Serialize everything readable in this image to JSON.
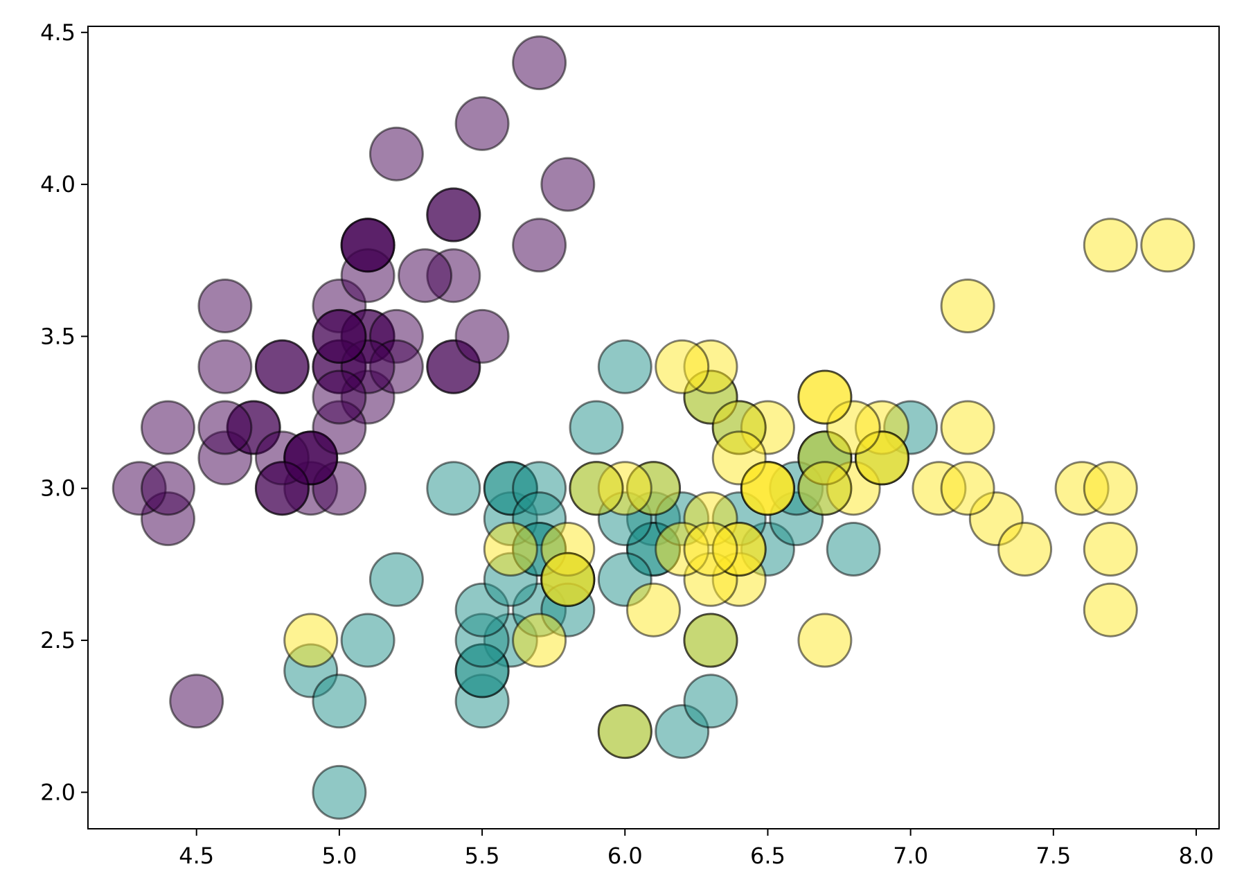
{
  "chart_data": {
    "type": "scatter",
    "title": "",
    "xlabel": "",
    "ylabel": "",
    "xlim": [
      4.12,
      8.08
    ],
    "ylim": [
      1.88,
      4.52
    ],
    "xticks": [
      "4.5",
      "5.0",
      "5.5",
      "6.0",
      "6.5",
      "7.0",
      "7.5",
      "8.0"
    ],
    "yticks": [
      "2.0",
      "2.5",
      "3.0",
      "3.5",
      "4.0",
      "4.5"
    ],
    "grid": false,
    "legend": "none",
    "colors": [
      "#440154",
      "#21918c",
      "#fde725"
    ],
    "series": [
      {
        "color": "#440154",
        "points": [
          [
            5.1,
            3.5
          ],
          [
            4.9,
            3.0
          ],
          [
            4.7,
            3.2
          ],
          [
            4.6,
            3.1
          ],
          [
            5.0,
            3.6
          ],
          [
            5.4,
            3.9
          ],
          [
            4.6,
            3.4
          ],
          [
            5.0,
            3.4
          ],
          [
            4.4,
            2.9
          ],
          [
            4.9,
            3.1
          ],
          [
            5.4,
            3.7
          ],
          [
            4.8,
            3.4
          ],
          [
            4.8,
            3.0
          ],
          [
            4.3,
            3.0
          ],
          [
            5.8,
            4.0
          ],
          [
            5.7,
            4.4
          ],
          [
            5.4,
            3.9
          ],
          [
            5.1,
            3.5
          ],
          [
            5.7,
            3.8
          ],
          [
            5.1,
            3.8
          ],
          [
            5.4,
            3.4
          ],
          [
            5.1,
            3.7
          ],
          [
            4.6,
            3.6
          ],
          [
            5.1,
            3.3
          ],
          [
            4.8,
            3.4
          ],
          [
            5.0,
            3.0
          ],
          [
            5.0,
            3.4
          ],
          [
            5.2,
            3.5
          ],
          [
            5.2,
            3.4
          ],
          [
            4.7,
            3.2
          ],
          [
            4.8,
            3.1
          ],
          [
            5.4,
            3.4
          ],
          [
            5.2,
            4.1
          ],
          [
            5.5,
            4.2
          ],
          [
            4.9,
            3.1
          ],
          [
            5.0,
            3.2
          ],
          [
            5.5,
            3.5
          ],
          [
            4.9,
            3.1
          ],
          [
            4.4,
            3.0
          ],
          [
            5.1,
            3.4
          ],
          [
            5.0,
            3.5
          ],
          [
            4.5,
            2.3
          ],
          [
            4.4,
            3.2
          ],
          [
            5.0,
            3.5
          ],
          [
            5.1,
            3.8
          ],
          [
            4.8,
            3.0
          ],
          [
            5.1,
            3.8
          ],
          [
            4.6,
            3.2
          ],
          [
            5.3,
            3.7
          ],
          [
            5.0,
            3.3
          ]
        ]
      },
      {
        "color": "#21918c",
        "points": [
          [
            7.0,
            3.2
          ],
          [
            6.4,
            3.2
          ],
          [
            6.9,
            3.1
          ],
          [
            5.5,
            2.3
          ],
          [
            6.5,
            2.8
          ],
          [
            5.7,
            2.8
          ],
          [
            6.3,
            3.3
          ],
          [
            4.9,
            2.4
          ],
          [
            6.6,
            2.9
          ],
          [
            5.2,
            2.7
          ],
          [
            5.0,
            2.0
          ],
          [
            5.9,
            3.0
          ],
          [
            6.0,
            2.2
          ],
          [
            6.1,
            2.9
          ],
          [
            5.6,
            2.9
          ],
          [
            6.7,
            3.1
          ],
          [
            5.6,
            3.0
          ],
          [
            5.8,
            2.7
          ],
          [
            6.2,
            2.2
          ],
          [
            5.6,
            2.5
          ],
          [
            5.9,
            3.2
          ],
          [
            6.1,
            2.8
          ],
          [
            6.3,
            2.5
          ],
          [
            6.1,
            2.8
          ],
          [
            6.4,
            2.9
          ],
          [
            6.6,
            3.0
          ],
          [
            6.8,
            2.8
          ],
          [
            6.7,
            3.0
          ],
          [
            6.0,
            2.9
          ],
          [
            5.7,
            2.6
          ],
          [
            5.5,
            2.4
          ],
          [
            5.5,
            2.4
          ],
          [
            5.8,
            2.7
          ],
          [
            6.0,
            2.7
          ],
          [
            5.4,
            3.0
          ],
          [
            6.0,
            3.4
          ],
          [
            6.7,
            3.1
          ],
          [
            6.3,
            2.3
          ],
          [
            5.6,
            3.0
          ],
          [
            5.5,
            2.5
          ],
          [
            5.5,
            2.6
          ],
          [
            6.1,
            3.0
          ],
          [
            5.8,
            2.6
          ],
          [
            5.0,
            2.3
          ],
          [
            5.6,
            2.7
          ],
          [
            5.7,
            3.0
          ],
          [
            5.7,
            2.9
          ],
          [
            6.2,
            2.9
          ],
          [
            5.1,
            2.5
          ],
          [
            5.7,
            2.8
          ]
        ]
      },
      {
        "color": "#fde725",
        "points": [
          [
            6.3,
            3.3
          ],
          [
            5.8,
            2.7
          ],
          [
            7.1,
            3.0
          ],
          [
            6.3,
            2.9
          ],
          [
            6.5,
            3.0
          ],
          [
            7.6,
            3.0
          ],
          [
            4.9,
            2.5
          ],
          [
            7.3,
            2.9
          ],
          [
            6.7,
            2.5
          ],
          [
            7.2,
            3.6
          ],
          [
            6.5,
            3.2
          ],
          [
            6.4,
            2.7
          ],
          [
            6.8,
            3.0
          ],
          [
            5.7,
            2.5
          ],
          [
            5.8,
            2.8
          ],
          [
            6.4,
            3.2
          ],
          [
            6.5,
            3.0
          ],
          [
            7.7,
            3.8
          ],
          [
            7.7,
            2.6
          ],
          [
            6.0,
            2.2
          ],
          [
            6.9,
            3.2
          ],
          [
            5.6,
            2.8
          ],
          [
            7.7,
            2.8
          ],
          [
            6.3,
            2.7
          ],
          [
            6.7,
            3.3
          ],
          [
            7.2,
            3.2
          ],
          [
            6.2,
            2.8
          ],
          [
            6.1,
            3.0
          ],
          [
            6.4,
            2.8
          ],
          [
            7.2,
            3.0
          ],
          [
            7.4,
            2.8
          ],
          [
            7.9,
            3.8
          ],
          [
            6.4,
            2.8
          ],
          [
            6.3,
            2.8
          ],
          [
            6.1,
            2.6
          ],
          [
            7.7,
            3.0
          ],
          [
            6.3,
            3.4
          ],
          [
            6.4,
            3.1
          ],
          [
            6.0,
            3.0
          ],
          [
            6.9,
            3.1
          ],
          [
            6.7,
            3.1
          ],
          [
            6.9,
            3.1
          ],
          [
            5.8,
            2.7
          ],
          [
            6.8,
            3.2
          ],
          [
            6.7,
            3.3
          ],
          [
            6.7,
            3.0
          ],
          [
            6.3,
            2.5
          ],
          [
            6.5,
            3.0
          ],
          [
            6.2,
            3.4
          ],
          [
            5.9,
            3.0
          ]
        ]
      }
    ]
  }
}
